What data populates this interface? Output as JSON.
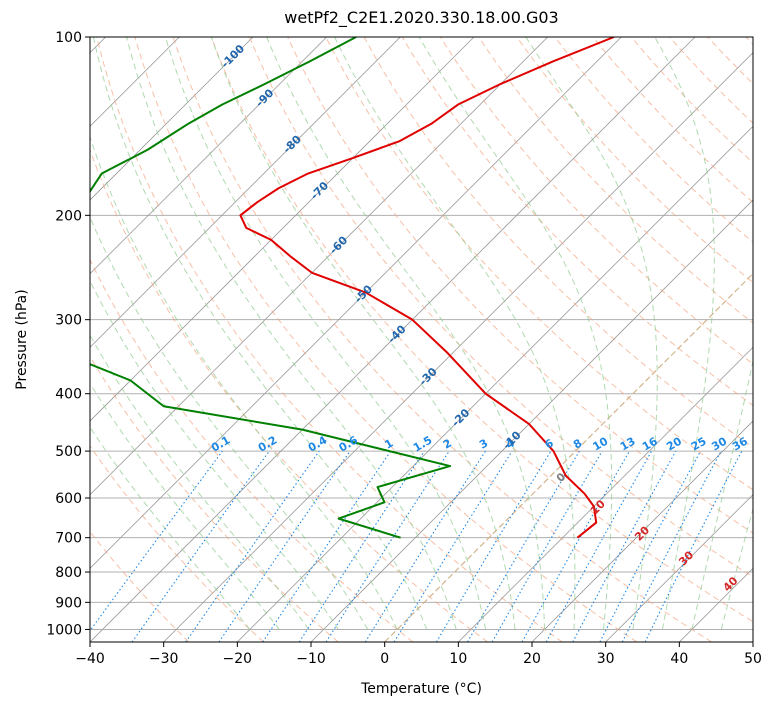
{
  "chart_data": {
    "type": "line",
    "title": "wetPf2_C2E1.2020.330.18.00.G03",
    "xlabel": "Temperature (°C)",
    "ylabel": "Pressure (hPa)",
    "xlim": [
      -40,
      50
    ],
    "ylim": [
      1050,
      100
    ],
    "y_scale": "log",
    "x_ticks": [
      -40,
      -30,
      -20,
      -10,
      0,
      10,
      20,
      30,
      40,
      50
    ],
    "y_ticks": [
      100,
      200,
      300,
      400,
      500,
      600,
      700,
      800,
      900,
      1000
    ],
    "grid": true,
    "series": [
      {
        "color": "#e00000",
        "x": [
          -51,
          -56,
          -60,
          -63,
          -64,
          -66,
          -70,
          -74,
          -76,
          -77,
          -77.5,
          -75,
          -70,
          -65,
          -60,
          -50,
          -40,
          -31,
          -20,
          -10,
          -3,
          2,
          7,
          10,
          12.5,
          12
        ],
        "y": [
          100,
          110,
          120,
          130,
          140,
          150,
          160,
          170,
          180,
          190,
          200,
          210,
          220,
          235,
          250,
          270,
          300,
          340,
          400,
          450,
          500,
          550,
          590,
          620,
          660,
          700
        ]
      },
      {
        "color": "#008000",
        "x": [
          -86,
          -89,
          -92,
          -95,
          -97,
          -99,
          -102,
          -101,
          -100,
          -99,
          -97,
          -92,
          -85,
          -80,
          -70,
          -62,
          -40,
          -15,
          -22,
          -19,
          -23,
          -12
        ],
        "y": [
          100,
          110,
          120,
          130,
          140,
          155,
          170,
          185,
          200,
          220,
          250,
          290,
          320,
          350,
          380,
          420,
          460,
          530,
          575,
          610,
          650,
          700
        ]
      }
    ],
    "dry_adiabat_labels": [
      "-100",
      "-90",
      "-80",
      "-70",
      "-60",
      "-50",
      "-40",
      "-30",
      "-20",
      "-10"
    ],
    "moist_adiabat_labels": [
      "0",
      "10",
      "20",
      "30",
      "40"
    ],
    "mixing_ratio_labels": [
      "0.1",
      "0.2",
      "0.4",
      "0.6",
      "1",
      "1.5",
      "2",
      "3",
      "4",
      "6",
      "8",
      "10",
      "13",
      "16",
      "20",
      "25",
      "30",
      "36"
    ],
    "colors": {
      "temperature": "#e00000",
      "dewpoint": "#008000",
      "dry_adiabat": "#f4a582",
      "moist_adiabat": "#8fc98f",
      "mixing_ratio": "#1e88e5",
      "isotherm": "#999999",
      "dry_label": "#2166ac",
      "moist_label": "#d62728",
      "zero_isotherm": "#d2b48c"
    }
  }
}
